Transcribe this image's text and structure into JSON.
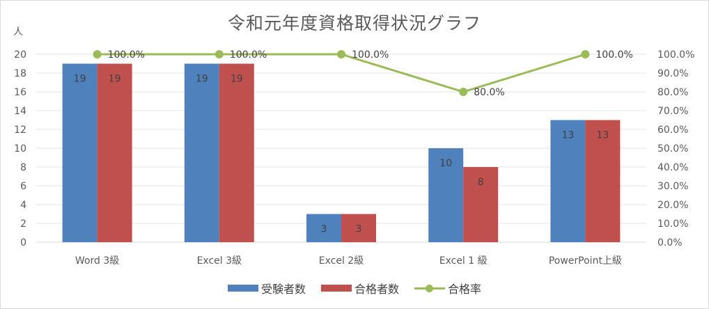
{
  "chart_data": {
    "type": "bar",
    "title": "令和元年度資格取得状況グラフ",
    "y_unit_label": "人",
    "categories": [
      "Word 3級",
      "Excel 3級",
      "Excel 2級",
      "Excel 1 級",
      "PowerPoint上級"
    ],
    "series": [
      {
        "name": "受験者数",
        "type": "bar",
        "values": [
          19,
          19,
          3,
          10,
          13
        ],
        "color": "#4f81bd"
      },
      {
        "name": "合格者数",
        "type": "bar",
        "values": [
          19,
          19,
          3,
          8,
          13
        ],
        "color": "#c0504d"
      },
      {
        "name": "合格率",
        "type": "line",
        "axis": "right",
        "values": [
          100.0,
          100.0,
          100.0,
          80.0,
          100.0
        ],
        "color": "#9bbb59"
      }
    ],
    "rate_labels": [
      "100.0%",
      "100.0%",
      "100.0%",
      "80.0%",
      "100.0%"
    ],
    "ylim": [
      0,
      20
    ],
    "y_ticks": [
      "0",
      "2",
      "4",
      "6",
      "8",
      "10",
      "12",
      "14",
      "16",
      "18",
      "20"
    ],
    "y2lim": [
      0,
      100
    ],
    "y2_ticks": [
      "0.0%",
      "10.0%",
      "20.0%",
      "30.0%",
      "40.0%",
      "50.0%",
      "60.0%",
      "70.0%",
      "80.0%",
      "90.0%",
      "100.0%"
    ],
    "grid": true,
    "legend_position": "bottom"
  }
}
